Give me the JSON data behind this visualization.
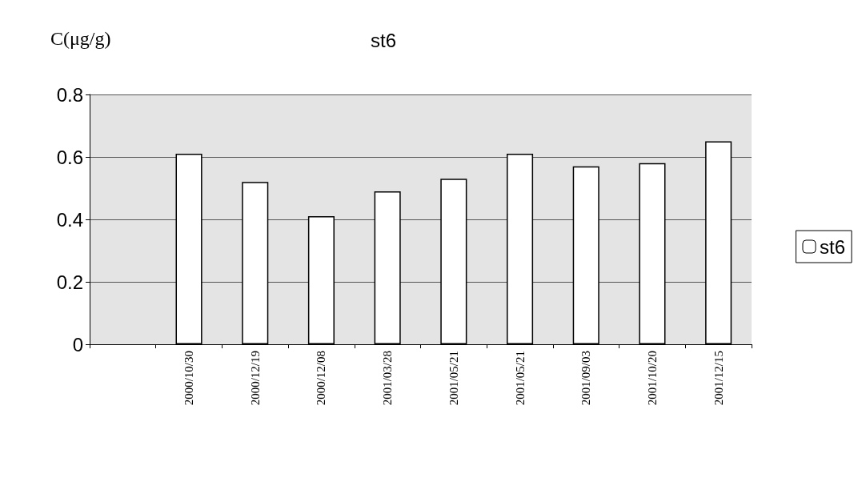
{
  "chart_data": {
    "type": "bar",
    "title": "st6",
    "ylabel": "C(μg/g)",
    "categories": [
      null,
      "2000/10/30",
      "2000/12/19",
      "2000/12/08",
      "2001/03/28",
      "2001/05/21",
      "2001/05/21",
      "2001/09/03",
      "2001/10/20",
      "2001/12/15"
    ],
    "series": [
      {
        "name": "st6",
        "color": "#ffffff",
        "values": [
          null,
          0.61,
          0.52,
          0.41,
          0.49,
          0.53,
          0.61,
          0.57,
          0.58,
          0.65
        ]
      }
    ],
    "ylim": [
      0,
      0.8
    ],
    "yticks": [
      0,
      0.2,
      0.4,
      0.6,
      0.8
    ],
    "grid": "y",
    "legend": "right"
  }
}
